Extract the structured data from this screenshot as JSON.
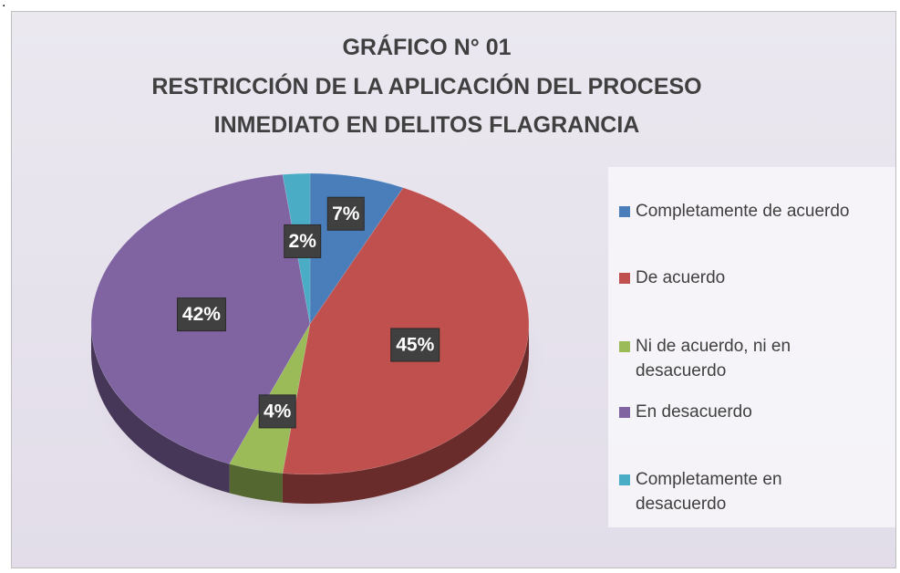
{
  "leading_text": ".",
  "chart_data": {
    "type": "pie",
    "title": [
      "GRÁFICO N° 01",
      "RESTRICCIÓN DE LA APLICACIÓN DEL PROCESO",
      "INMEDIATO EN DELITOS FLAGRANCIA"
    ],
    "categories": [
      "Completamente de acuerdo",
      "De acuerdo",
      "Ni de acuerdo, ni en desacuerdo",
      "En desacuerdo",
      "Completamente en desacuerdo"
    ],
    "values": [
      7,
      45,
      4,
      42,
      2
    ],
    "value_labels": [
      "7%",
      "45%",
      "4%",
      "42%",
      "2%"
    ],
    "colors": [
      "#4a7ebb",
      "#c0504d",
      "#9bbb59",
      "#8064a2",
      "#4bacc6"
    ],
    "legend": "right"
  }
}
